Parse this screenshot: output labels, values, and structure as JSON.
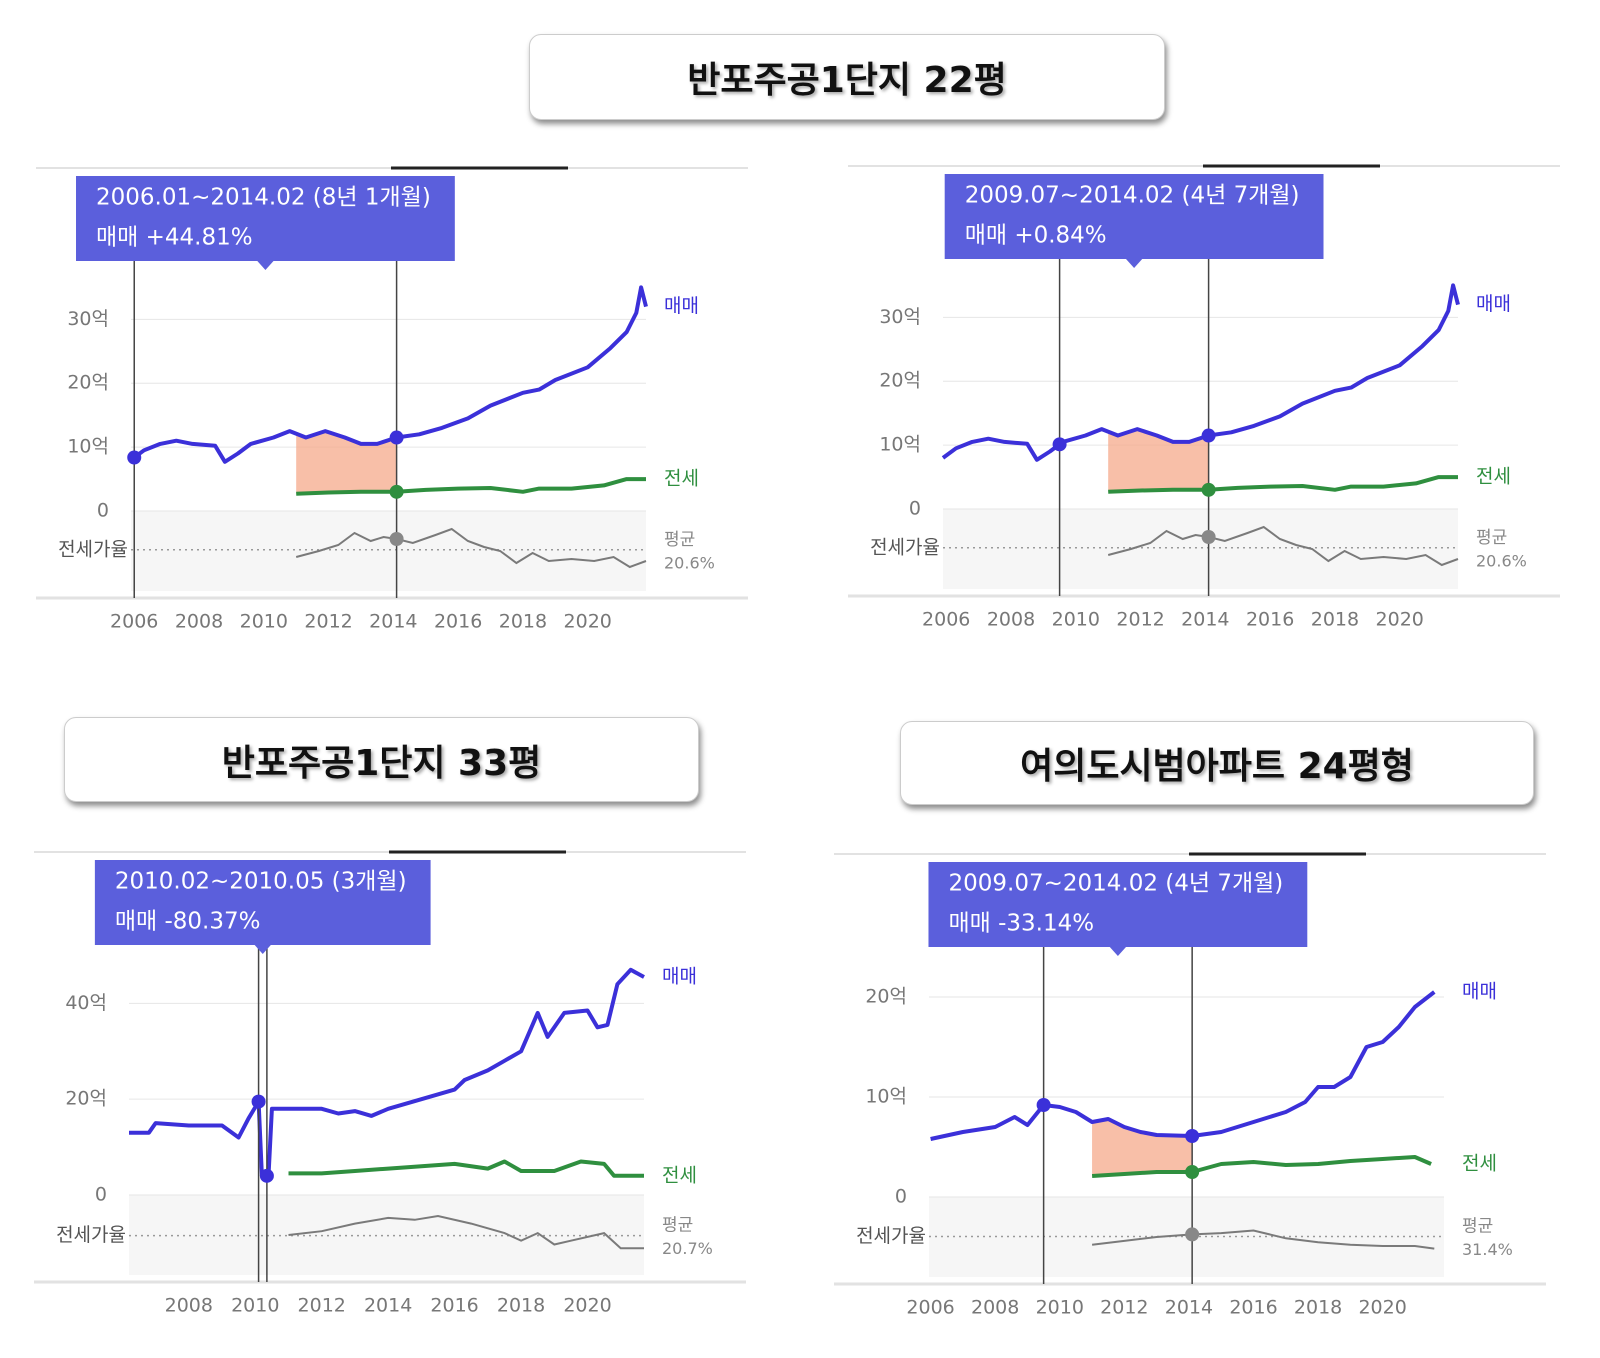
{
  "titles": [
    "반포주공1단지 22평",
    "반포주공1단지 33평",
    "여의도시범아파트 24평형"
  ],
  "chart_data": [
    {
      "type": "line",
      "tooltip": [
        "2006.01~2014.02 (8년 1개월)",
        "매매 +44.81%"
      ],
      "tooltip_color": "#5b5fdc",
      "period": [
        2006.0,
        2014.1
      ],
      "period_fill": "#f5a98b",
      "xlim": [
        2005.9,
        2021.8
      ],
      "xticks": [
        2006,
        2008,
        2010,
        2012,
        2014,
        2016,
        2018,
        2020
      ],
      "ylim": [
        0,
        36
      ],
      "yticks": [
        0,
        {
          "value": 10,
          "label": "10억"
        },
        {
          "value": 20,
          "label": "20억"
        },
        {
          "value": 30,
          "label": "30억"
        }
      ],
      "series": [
        {
          "name": "매매",
          "color": "#3b30d9",
          "x": [
            2005.9,
            2006.3,
            2006.8,
            2007.3,
            2007.8,
            2008.5,
            2008.8,
            2009.2,
            2009.6,
            2010.3,
            2010.8,
            2011.3,
            2011.9,
            2012.5,
            2013.0,
            2013.5,
            2014.1,
            2014.8,
            2015.5,
            2016.3,
            2017.0,
            2018.0,
            2018.5,
            2019.0,
            2020.0,
            2020.7,
            2021.2,
            2021.5,
            2021.65,
            2021.8
          ],
          "values": [
            8,
            9.5,
            10.5,
            11,
            10.5,
            10.2,
            7.7,
            9,
            10.5,
            11.5,
            12.5,
            11.5,
            12.5,
            11.5,
            10.5,
            10.5,
            11.5,
            12,
            13,
            14.5,
            16.5,
            18.5,
            19,
            20.5,
            22.5,
            25.5,
            28,
            31,
            35,
            32
          ]
        },
        {
          "name": "전세",
          "color": "#2f8f3f",
          "x": [
            2011.0,
            2012.0,
            2013.0,
            2014.1,
            2015.0,
            2016.0,
            2017.0,
            2018.0,
            2018.5,
            2019.5,
            2020.5,
            2021.2,
            2021.8
          ],
          "values": [
            2.7,
            2.9,
            3.0,
            3.0,
            3.3,
            3.5,
            3.6,
            3.0,
            3.5,
            3.5,
            4.0,
            5.0,
            5.0
          ]
        }
      ],
      "ratio": {
        "label": "전세가율",
        "color": "#7a7a7a",
        "lim": [
          0,
          40
        ],
        "x": [
          2011.0,
          2011.7,
          2012.3,
          2012.8,
          2013.3,
          2013.7,
          2014.1,
          2014.6,
          2015.3,
          2015.8,
          2016.3,
          2016.8,
          2017.3,
          2017.8,
          2018.3,
          2018.8,
          2019.5,
          2020.2,
          2020.8,
          2021.3,
          2021.8
        ],
        "values": [
          17,
          20,
          23,
          29,
          25,
          27,
          26,
          24,
          28,
          31,
          25,
          22,
          20,
          14,
          19,
          15,
          16,
          15,
          17,
          12,
          15
        ],
        "avg": 20.6,
        "avg_label": "평균",
        "avg_value_label": "20.6%"
      }
    },
    {
      "type": "line",
      "tooltip": [
        "2009.07~2014.02 (4년 7개월)",
        "매매 +0.84%"
      ],
      "tooltip_color": "#5b5fdc",
      "period": [
        2009.5,
        2014.1
      ],
      "period_fill": "#f5a98b",
      "xlim": [
        2005.9,
        2021.8
      ],
      "xticks": [
        2006,
        2008,
        2010,
        2012,
        2014,
        2016,
        2018,
        2020
      ],
      "ylim": [
        0,
        36
      ],
      "yticks": [
        0,
        {
          "value": 10,
          "label": "10억"
        },
        {
          "value": 20,
          "label": "20억"
        },
        {
          "value": 30,
          "label": "30억"
        }
      ],
      "series": [
        {
          "name": "매매",
          "color": "#3b30d9",
          "x": [
            2005.9,
            2006.3,
            2006.8,
            2007.3,
            2007.8,
            2008.5,
            2008.8,
            2009.2,
            2009.6,
            2010.3,
            2010.8,
            2011.3,
            2011.9,
            2012.5,
            2013.0,
            2013.5,
            2014.1,
            2014.8,
            2015.5,
            2016.3,
            2017.0,
            2018.0,
            2018.5,
            2019.0,
            2020.0,
            2020.7,
            2021.2,
            2021.5,
            2021.65,
            2021.8
          ],
          "values": [
            8,
            9.5,
            10.5,
            11,
            10.5,
            10.2,
            7.7,
            9,
            10.5,
            11.5,
            12.5,
            11.5,
            12.5,
            11.5,
            10.5,
            10.5,
            11.5,
            12,
            13,
            14.5,
            16.5,
            18.5,
            19,
            20.5,
            22.5,
            25.5,
            28,
            31,
            35,
            32
          ]
        },
        {
          "name": "전세",
          "color": "#2f8f3f",
          "x": [
            2011.0,
            2012.0,
            2013.0,
            2014.1,
            2015.0,
            2016.0,
            2017.0,
            2018.0,
            2018.5,
            2019.5,
            2020.5,
            2021.2,
            2021.8
          ],
          "values": [
            2.7,
            2.9,
            3.0,
            3.0,
            3.3,
            3.5,
            3.6,
            3.0,
            3.5,
            3.5,
            4.0,
            5.0,
            5.0
          ]
        }
      ],
      "ratio": {
        "label": "전세가율",
        "color": "#7a7a7a",
        "lim": [
          0,
          40
        ],
        "x": [
          2011.0,
          2011.7,
          2012.3,
          2012.8,
          2013.3,
          2013.7,
          2014.1,
          2014.6,
          2015.3,
          2015.8,
          2016.3,
          2016.8,
          2017.3,
          2017.8,
          2018.3,
          2018.8,
          2019.5,
          2020.2,
          2020.8,
          2021.3,
          2021.8
        ],
        "values": [
          17,
          20,
          23,
          29,
          25,
          27,
          26,
          24,
          28,
          31,
          25,
          22,
          20,
          14,
          19,
          15,
          16,
          15,
          17,
          12,
          15
        ],
        "avg": 20.6,
        "avg_label": "평균",
        "avg_value_label": "20.6%"
      }
    },
    {
      "type": "line",
      "tooltip": [
        "2010.02~2010.05 (3개월)",
        "매매 -80.37%"
      ],
      "tooltip_color": "#5b5fdc",
      "period": [
        2010.1,
        2010.35
      ],
      "period_fill": "#f5a98b",
      "xlim": [
        2006.2,
        2021.7
      ],
      "xticks": [
        2008,
        2010,
        2012,
        2014,
        2016,
        2018,
        2020
      ],
      "ylim": [
        0,
        48
      ],
      "yticks": [
        0,
        {
          "value": 20,
          "label": "20억"
        },
        {
          "value": 40,
          "label": "40억"
        }
      ],
      "series": [
        {
          "name": "매매",
          "color": "#3b30d9",
          "x": [
            2006.2,
            2006.8,
            2007.0,
            2008.0,
            2009.0,
            2009.5,
            2009.8,
            2010.1,
            2010.2,
            2010.4,
            2010.5,
            2011.0,
            2012.0,
            2012.5,
            2013.0,
            2013.5,
            2014.0,
            2015.0,
            2016.0,
            2016.3,
            2017.0,
            2017.5,
            2018.0,
            2018.5,
            2018.8,
            2019.3,
            2020.0,
            2020.3,
            2020.6,
            2020.9,
            2021.3,
            2021.7
          ],
          "values": [
            13,
            13,
            15,
            14.5,
            14.5,
            12,
            16,
            19.5,
            4,
            4,
            18,
            18,
            18,
            17,
            17.5,
            16.5,
            18,
            20,
            22,
            24,
            26,
            28,
            30,
            38,
            33,
            38,
            38.5,
            35,
            35.5,
            44,
            47,
            45.5
          ]
        },
        {
          "name": "전세",
          "color": "#2f8f3f",
          "x": [
            2011,
            2012,
            2013,
            2014,
            2015,
            2016,
            2017,
            2017.5,
            2018,
            2019,
            2019.8,
            2020.5,
            2020.8,
            2021.7
          ],
          "values": [
            4.5,
            4.5,
            5,
            5.5,
            6,
            6.5,
            5.5,
            7,
            5,
            5,
            7,
            6.5,
            4,
            4
          ]
        }
      ],
      "ratio": {
        "label": "전세가율",
        "color": "#7a7a7a",
        "lim": [
          0,
          42
        ],
        "x": [
          2011,
          2012,
          2013,
          2014,
          2014.8,
          2015.5,
          2016.5,
          2017.5,
          2018,
          2018.5,
          2019,
          2019.5,
          2020.5,
          2021,
          2021.7
        ],
        "values": [
          21,
          23,
          27,
          30,
          29,
          31,
          27,
          22,
          18,
          22,
          16,
          18,
          22,
          14,
          14
        ],
        "avg": 20.7,
        "avg_label": "평균",
        "avg_value_label": "20.7%"
      }
    },
    {
      "type": "line",
      "tooltip": [
        "2009.07~2014.02 (4년 7개월)",
        "매매 -33.14%"
      ],
      "tooltip_color": "#5b5fdc",
      "period": [
        2009.5,
        2014.1
      ],
      "period_fill": "#f5a98b",
      "xlim": [
        2005.95,
        2021.9
      ],
      "xticks": [
        2006,
        2008,
        2010,
        2012,
        2014,
        2016,
        2018,
        2020
      ],
      "ylim": [
        0,
        23
      ],
      "yticks": [
        0,
        {
          "value": 10,
          "label": "10억"
        },
        {
          "value": 20,
          "label": "20억"
        }
      ],
      "series": [
        {
          "name": "매매",
          "color": "#3b30d9",
          "x": [
            2006,
            2007,
            2008,
            2008.6,
            2009,
            2009.5,
            2010,
            2010.5,
            2011,
            2011.5,
            2012,
            2012.5,
            2013,
            2014.1,
            2015,
            2016,
            2017,
            2017.6,
            2018,
            2018.5,
            2019,
            2019.5,
            2020,
            2020.5,
            2021,
            2021.6
          ],
          "values": [
            5.8,
            6.5,
            7,
            8,
            7.2,
            9.2,
            9,
            8.5,
            7.5,
            7.8,
            7,
            6.5,
            6.2,
            6.1,
            6.5,
            7.5,
            8.5,
            9.5,
            11,
            11,
            12,
            15,
            15.5,
            17,
            19,
            20.5
          ]
        },
        {
          "name": "전세",
          "color": "#2f8f3f",
          "x": [
            2011,
            2012,
            2013,
            2014.1,
            2015,
            2016,
            2017,
            2018,
            2019,
            2020,
            2021,
            2021.5
          ],
          "values": [
            2.1,
            2.3,
            2.5,
            2.5,
            3.3,
            3.5,
            3.2,
            3.3,
            3.6,
            3.8,
            4.0,
            3.3
          ]
        }
      ],
      "ratio": {
        "label": "전세가율",
        "color": "#7a7a7a",
        "lim": [
          0,
          62
        ],
        "x": [
          2011,
          2012,
          2013,
          2014.1,
          2015,
          2016,
          2016.5,
          2017,
          2018,
          2019,
          2020,
          2021,
          2021.6
        ],
        "values": [
          25,
          28,
          31,
          33,
          34,
          36,
          33,
          30,
          27,
          25,
          24,
          24,
          22
        ],
        "avg": 31.4,
        "avg_label": "평균",
        "avg_value_label": "31.4%"
      }
    }
  ]
}
